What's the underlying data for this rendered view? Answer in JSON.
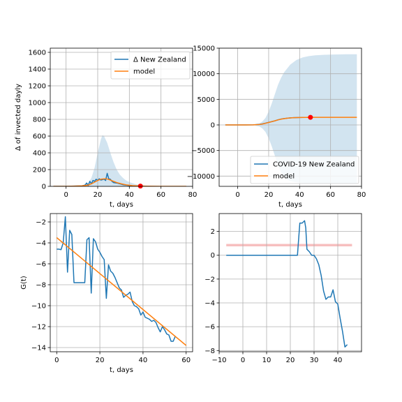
{
  "colors": {
    "blue": "#1f77b4",
    "orange": "#ff7f0e",
    "band": "#1f77b4",
    "marker": "#ff0000",
    "hband": "#f4a3a3"
  },
  "chart_data": [
    {
      "id": "p1",
      "type": "line",
      "title": "",
      "xlabel": "t, days",
      "ylabel": "Δ of invected dayly",
      "xlim": [
        -10,
        80
      ],
      "ylim": [
        0,
        1650
      ],
      "xticks": [
        0,
        20,
        40,
        60,
        80
      ],
      "yticks": [
        0,
        200,
        400,
        600,
        800,
        1000,
        1200,
        1400,
        1600
      ],
      "grid": true,
      "legend": "top-right",
      "band": {
        "x": [
          -8,
          0,
          5,
          10,
          14,
          16,
          18,
          20,
          22,
          23,
          24,
          26,
          28,
          30,
          32,
          34,
          36,
          38,
          40,
          44,
          48,
          55,
          65,
          76
        ],
        "upper": [
          0,
          1,
          3,
          10,
          40,
          100,
          220,
          400,
          560,
          610,
          600,
          520,
          400,
          290,
          200,
          140,
          100,
          70,
          50,
          25,
          12,
          4,
          1,
          0
        ],
        "lower": [
          0,
          0,
          0,
          0,
          0,
          0,
          0,
          0,
          0,
          0,
          0,
          0,
          0,
          0,
          0,
          0,
          0,
          0,
          0,
          0,
          0,
          0,
          0,
          0
        ]
      },
      "series": [
        {
          "name": "Δ New Zealand",
          "color": "#1f77b4",
          "x": [
            -8,
            -5,
            0,
            5,
            10,
            12,
            13,
            14,
            15,
            16,
            17,
            18,
            19,
            20,
            21,
            22,
            23,
            24,
            25,
            26,
            27,
            28,
            29,
            30,
            32,
            34,
            36,
            38,
            40,
            42,
            44,
            46,
            48
          ],
          "y": [
            0,
            0,
            0,
            3,
            5,
            15,
            40,
            10,
            60,
            30,
            70,
            60,
            85,
            70,
            90,
            75,
            80,
            85,
            70,
            155,
            90,
            85,
            60,
            45,
            40,
            30,
            20,
            15,
            8,
            5,
            4,
            2,
            1
          ]
        },
        {
          "name": "model",
          "color": "#ff7f0e",
          "x": [
            -8,
            0,
            5,
            10,
            14,
            16,
            18,
            20,
            22,
            24,
            25,
            26,
            28,
            30,
            32,
            35,
            38,
            42,
            46,
            50,
            60,
            70,
            76
          ],
          "y": [
            0,
            0,
            2,
            6,
            15,
            30,
            50,
            70,
            85,
            90,
            90,
            88,
            75,
            60,
            45,
            30,
            18,
            8,
            4,
            2,
            0,
            0,
            0
          ]
        }
      ],
      "marker": {
        "x": 47,
        "y": 3
      }
    },
    {
      "id": "p2",
      "type": "line",
      "title": "",
      "xlabel": "t, days",
      "ylabel": "",
      "xlim": [
        -12,
        80
      ],
      "ylim": [
        -12000,
        15000
      ],
      "xticks": [
        0,
        20,
        40,
        60,
        80
      ],
      "yticks": [
        -10000,
        -5000,
        0,
        5000,
        10000,
        15000
      ],
      "grid": true,
      "legend": "bottom-right",
      "band": {
        "x": [
          -8,
          0,
          5,
          10,
          14,
          16,
          18,
          20,
          22,
          24,
          26,
          28,
          30,
          34,
          38,
          42,
          46,
          50,
          56,
          62,
          70,
          77
        ],
        "upper": [
          0,
          0,
          10,
          60,
          300,
          700,
          1400,
          2600,
          4200,
          6000,
          7800,
          9200,
          10300,
          11800,
          12700,
          13200,
          13450,
          13600,
          13700,
          13750,
          13800,
          13800
        ],
        "lower": [
          0,
          0,
          -10,
          -60,
          -300,
          -700,
          -1400,
          -2600,
          -4200,
          -6000,
          -7800,
          -9200,
          -10300,
          -11000,
          -11200,
          -11400,
          -11450,
          -11450,
          -11450,
          -11450,
          -11450,
          -11450
        ]
      },
      "series": [
        {
          "name": "COVID-19 New Zealand",
          "color": "#1f77b4",
          "x": [
            -8,
            0,
            5,
            10,
            14,
            16,
            18,
            20,
            22,
            24,
            26,
            28,
            30,
            32,
            34,
            36,
            38,
            40,
            42,
            44,
            46,
            48
          ],
          "y": [
            0,
            0,
            5,
            20,
            100,
            200,
            350,
            500,
            650,
            800,
            1000,
            1150,
            1250,
            1320,
            1380,
            1420,
            1440,
            1455,
            1465,
            1470,
            1472,
            1474
          ]
        },
        {
          "name": "model",
          "color": "#ff7f0e",
          "x": [
            -8,
            0,
            5,
            10,
            14,
            16,
            18,
            20,
            22,
            24,
            26,
            28,
            30,
            32,
            34,
            36,
            38,
            40,
            44,
            48,
            55,
            65,
            77
          ],
          "y": [
            0,
            0,
            5,
            20,
            90,
            180,
            320,
            480,
            640,
            800,
            980,
            1120,
            1230,
            1310,
            1370,
            1410,
            1440,
            1455,
            1470,
            1480,
            1485,
            1485,
            1485
          ]
        }
      ],
      "marker": {
        "x": 47,
        "y": 1480
      }
    },
    {
      "id": "p3",
      "type": "line",
      "title": "",
      "xlabel": "t, days",
      "ylabel": "G(t)",
      "xlim": [
        -3,
        63
      ],
      "ylim": [
        -14.4,
        -1.2
      ],
      "xticks": [
        0,
        20,
        40,
        60
      ],
      "yticks": [
        -2,
        -4,
        -6,
        -8,
        -10,
        -12,
        -14
      ],
      "grid": true,
      "legend": "none",
      "series": [
        {
          "name": "",
          "color": "#1f77b4",
          "x": [
            0,
            1,
            2,
            3,
            4,
            5,
            6,
            7,
            8,
            9,
            10,
            11,
            12,
            13,
            14,
            15,
            16,
            17,
            18,
            19,
            20,
            21,
            22,
            23,
            24,
            25,
            26,
            27,
            28,
            29,
            30,
            31,
            32,
            33,
            34,
            35,
            36,
            37,
            38,
            39,
            40,
            41,
            42,
            43,
            44,
            45,
            46,
            47,
            48,
            49,
            50,
            51,
            52,
            53,
            54,
            55
          ],
          "y": [
            -4.6,
            -4.6,
            -4.65,
            -4.0,
            -1.5,
            -6.8,
            -2.8,
            -3.2,
            -7.8,
            -7.8,
            -7.8,
            -7.8,
            -7.8,
            -7.8,
            -3.7,
            -3.5,
            -8.8,
            -3.6,
            -3.9,
            -4.6,
            -4.9,
            -5.3,
            -5.6,
            -9.3,
            -6.1,
            -6.7,
            -6.9,
            -7.3,
            -7.8,
            -8.3,
            -8.5,
            -9.2,
            -9.0,
            -8.9,
            -8.7,
            -9.6,
            -10.0,
            -10.1,
            -10.3,
            -10.9,
            -10.6,
            -11.1,
            -11.2,
            -11.3,
            -11.5,
            -11.4,
            -11.6,
            -12.1,
            -12.5,
            -12.0,
            -12.3,
            -12.7,
            -12.8,
            -13.4,
            -13.4,
            -12.9
          ]
        },
        {
          "name": "",
          "color": "#ff7f0e",
          "x": [
            0,
            60
          ],
          "y": [
            -3.5,
            -13.8
          ]
        }
      ]
    },
    {
      "id": "p4",
      "type": "line",
      "title": "",
      "xlabel": "",
      "ylabel": "",
      "xlim": [
        -10,
        50
      ],
      "ylim": [
        -8.1,
        3.5
      ],
      "xticks": [
        -10,
        0,
        10,
        20,
        30,
        40
      ],
      "yticks": [
        2,
        0,
        -2,
        -4,
        -6,
        -8
      ],
      "grid": true,
      "legend": "none",
      "hband": {
        "x0": -7,
        "x1": 46,
        "y0": 0.75,
        "y1": 0.95
      },
      "series": [
        {
          "name": "",
          "color": "#1f77b4",
          "x": [
            -7,
            -2,
            3,
            8,
            13,
            18,
            23,
            24,
            25,
            26,
            26.5,
            27,
            28,
            29,
            30,
            31,
            32,
            33,
            34,
            35,
            36,
            37,
            38,
            39,
            40,
            41,
            42,
            43,
            44
          ],
          "y": [
            0,
            0,
            0,
            0,
            0,
            0,
            0,
            2.7,
            2.7,
            2.9,
            2.3,
            0.5,
            0.3,
            0,
            0,
            -0.3,
            -0.8,
            -1.7,
            -3.0,
            -3.7,
            -3.5,
            -3.5,
            -2.9,
            -3.9,
            -4.1,
            -5.3,
            -6.4,
            -7.7,
            -7.5
          ]
        }
      ]
    }
  ]
}
